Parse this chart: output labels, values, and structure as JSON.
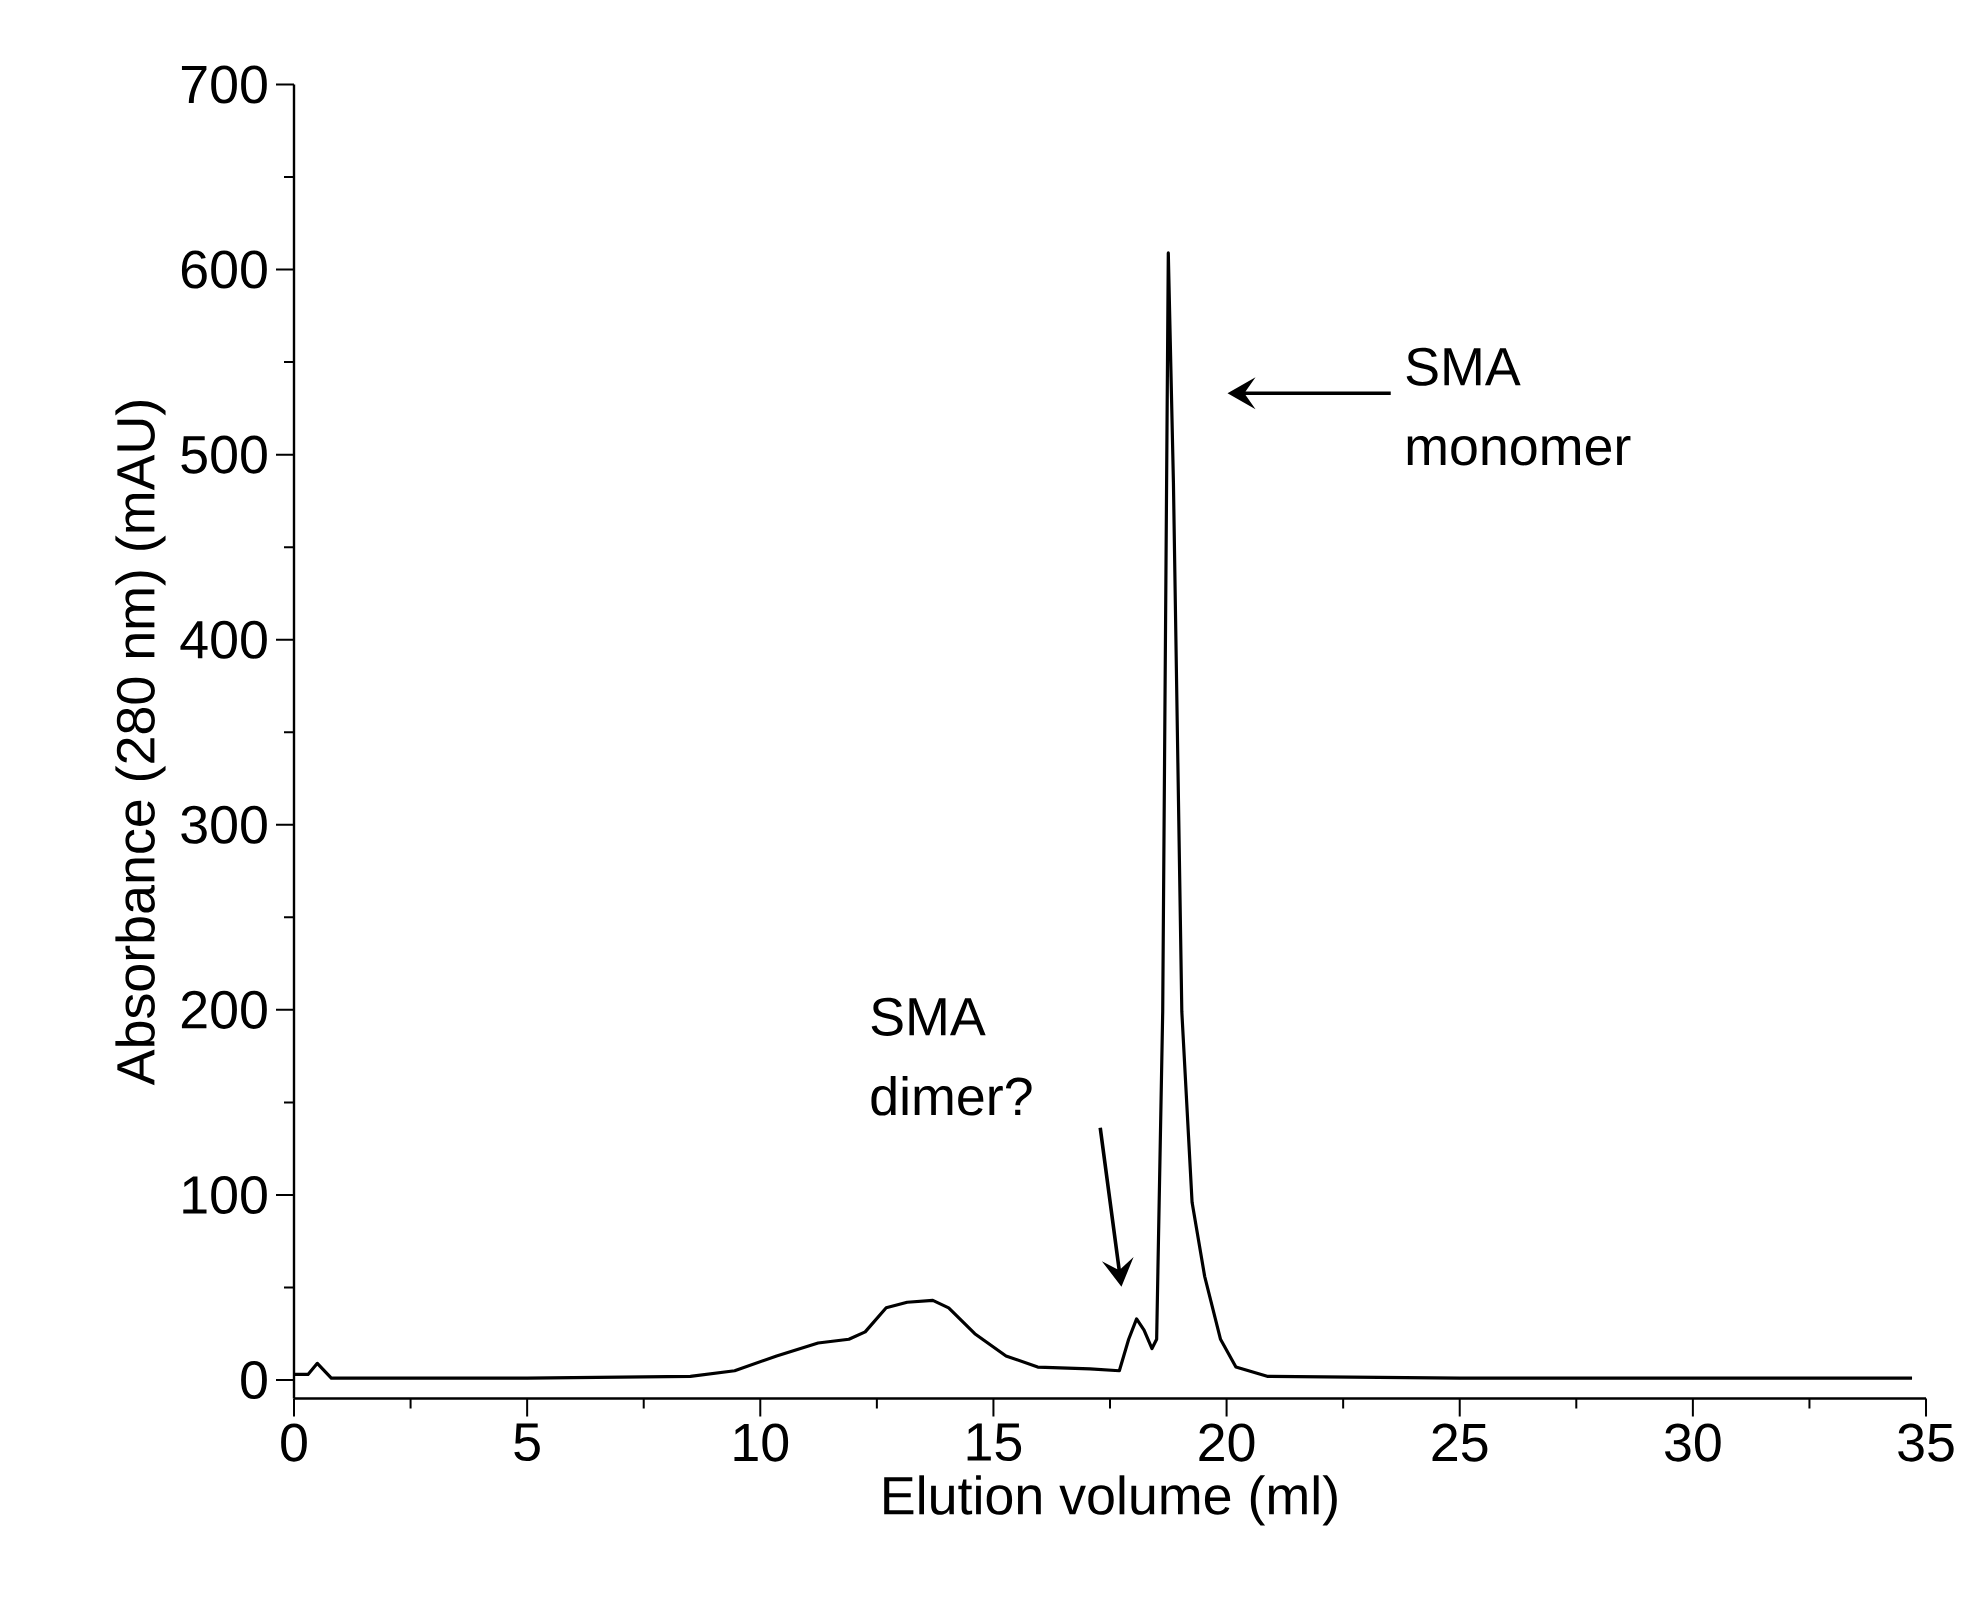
{
  "chart_data": {
    "type": "line",
    "xlabel": "Elution volume (ml)",
    "ylabel": "Absorbance (280 nm) (mAU)",
    "xlim": [
      0,
      35
    ],
    "ylim": [
      -10,
      700
    ],
    "xticks": [
      0,
      5,
      10,
      15,
      20,
      25,
      30,
      35
    ],
    "yticks": [
      0,
      100,
      200,
      300,
      400,
      500,
      600,
      700
    ],
    "series": [
      {
        "color": "#000000",
        "x": [
          0,
          0.3,
          0.5,
          0.8,
          2,
          5,
          8.5,
          9.45,
          10.35,
          11.24,
          11.9,
          12.25,
          12.7,
          13.15,
          13.7,
          14.04,
          14.6,
          15.27,
          15.95,
          17.07,
          17.7,
          17.9,
          18.07,
          18.23,
          18.4,
          18.5,
          18.63,
          18.75,
          18.86,
          19.04,
          19.26,
          19.53,
          19.87,
          20.2,
          20.87,
          25,
          30,
          34.7
        ],
        "values": [
          3,
          3,
          9,
          1,
          1,
          1,
          2,
          5,
          13,
          20,
          22,
          26,
          39,
          42,
          43,
          39,
          25,
          13,
          7,
          6,
          5,
          22,
          33,
          27,
          17,
          22,
          199,
          609,
          485,
          199,
          96,
          56,
          22,
          7,
          2,
          1,
          1,
          1
        ]
      }
    ],
    "annotations": [
      "SMA monomer",
      "SMA dimer?"
    ]
  }
}
